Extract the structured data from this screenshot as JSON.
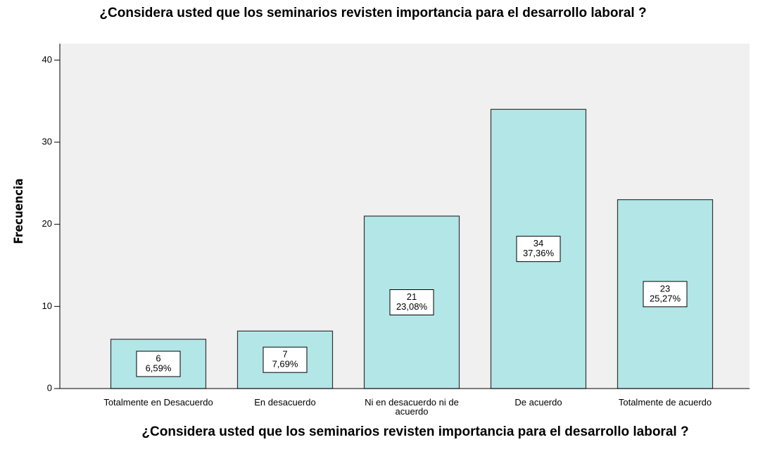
{
  "chart_data": {
    "type": "bar",
    "title": "¿Considera usted que los seminarios revisten importancia para el desarrollo laboral ?",
    "x_label": "¿Considera usted que los seminarios revisten importancia para el desarrollo laboral ?",
    "y_label": "Frecuencia",
    "categories": [
      "Totalmente en Desacuerdo",
      "En desacuerdo",
      "Ni en desacuerdo ni de acuerdo",
      "De acuerdo",
      "Totalmente de acuerdo"
    ],
    "values": [
      6,
      7,
      21,
      34,
      23
    ],
    "percent_labels": [
      "6,59%",
      "7,69%",
      "23,08%",
      "37,36%",
      "25,27%"
    ],
    "color": "#b3e6e6",
    "ylim": [
      0,
      42
    ],
    "yticks": [
      0,
      10,
      20,
      30,
      40
    ]
  }
}
